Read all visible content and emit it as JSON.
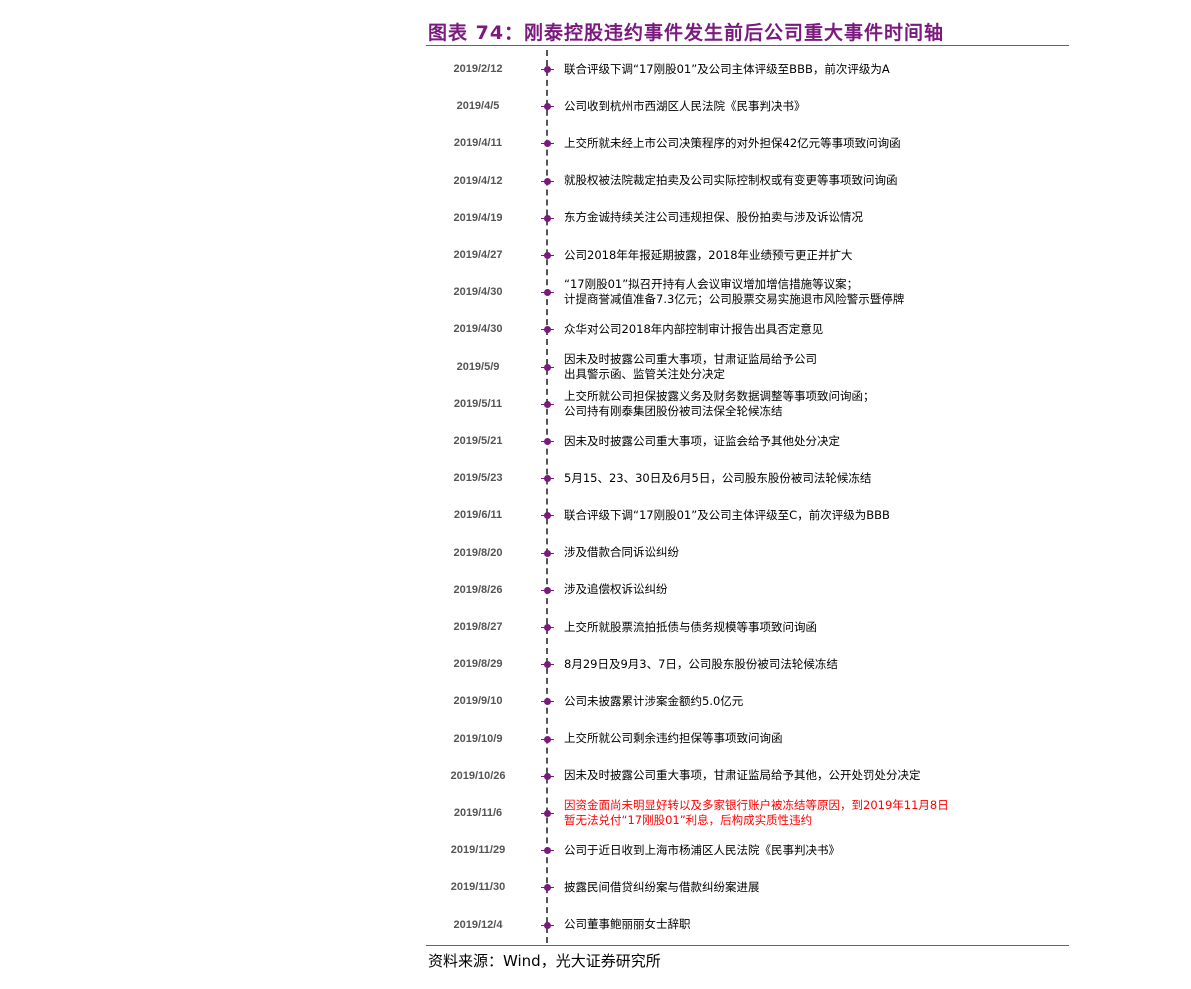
{
  "figure": {
    "title": "图表 74：刚泰控股违约事件发生前后公司重大事件时间轴",
    "source": "资料来源：Wind，光大证券研究所"
  },
  "events": [
    {
      "date": "2019/2/12",
      "lines": [
        "联合评级下调“17刚股01”及公司主体评级至BBB，前次评级为A"
      ],
      "highlight": false
    },
    {
      "date": "2019/4/5",
      "lines": [
        "公司收到杭州市西湖区人民法院《民事判决书》"
      ],
      "highlight": false
    },
    {
      "date": "2019/4/11",
      "lines": [
        "上交所就未经上市公司决策程序的对外担保42亿元等事项致问询函"
      ],
      "highlight": false
    },
    {
      "date": "2019/4/12",
      "lines": [
        "就股权被法院裁定拍卖及公司实际控制权或有变更等事项致问询函"
      ],
      "highlight": false
    },
    {
      "date": "2019/4/19",
      "lines": [
        "东方金诚持续关注公司违规担保、股份拍卖与涉及诉讼情况"
      ],
      "highlight": false
    },
    {
      "date": "2019/4/27",
      "lines": [
        "公司2018年年报延期披露，2018年业绩预亏更正并扩大"
      ],
      "highlight": false
    },
    {
      "date": "2019/4/30",
      "lines": [
        "“17刚股01”拟召开持有人会议审议增加增信措施等议案；",
        "计提商誉减值准备7.3亿元；公司股票交易实施退市风险警示暨停牌"
      ],
      "highlight": false
    },
    {
      "date": "2019/4/30",
      "lines": [
        "众华对公司2018年内部控制审计报告出具否定意见"
      ],
      "highlight": false
    },
    {
      "date": "2019/5/9",
      "lines": [
        "因未及时披露公司重大事项，甘肃证监局给予公司",
        "出具警示函、监管关注处分决定"
      ],
      "highlight": false
    },
    {
      "date": "2019/5/11",
      "lines": [
        "上交所就公司担保披露义务及财务数据调整等事项致问询函；",
        "公司持有刚泰集团股份被司法保全轮候冻结"
      ],
      "highlight": false
    },
    {
      "date": "2019/5/21",
      "lines": [
        "因未及时披露公司重大事项，证监会给予其他处分决定"
      ],
      "highlight": false
    },
    {
      "date": "2019/5/23",
      "lines": [
        "5月15、23、30日及6月5日，公司股东股份被司法轮候冻结"
      ],
      "highlight": false
    },
    {
      "date": "2019/6/11",
      "lines": [
        "联合评级下调“17刚股01”及公司主体评级至C，前次评级为BBB"
      ],
      "highlight": false
    },
    {
      "date": "2019/8/20",
      "lines": [
        "涉及借款合同诉讼纠纷"
      ],
      "highlight": false
    },
    {
      "date": "2019/8/26",
      "lines": [
        "涉及追偿权诉讼纠纷"
      ],
      "highlight": false
    },
    {
      "date": "2019/8/27",
      "lines": [
        "上交所就股票流拍抵债与债务规模等事项致问询函"
      ],
      "highlight": false
    },
    {
      "date": "2019/8/29",
      "lines": [
        "8月29日及9月3、7日，公司股东股份被司法轮候冻结"
      ],
      "highlight": false
    },
    {
      "date": "2019/9/10",
      "lines": [
        "公司未披露累计涉案金额约5.0亿元"
      ],
      "highlight": false
    },
    {
      "date": "2019/10/9",
      "lines": [
        "上交所就公司剩余违约担保等事项致问询函"
      ],
      "highlight": false
    },
    {
      "date": "2019/10/26",
      "lines": [
        "因未及时披露公司重大事项，甘肃证监局给予其他，公开处罚处分决定"
      ],
      "highlight": false
    },
    {
      "date": "2019/11/6",
      "lines": [
        "因资金面尚未明显好转以及多家银行账户被冻结等原因，到2019年11月8日",
        "暂无法兑付“17刚股01”利息，后构成实质性违约"
      ],
      "highlight": true
    },
    {
      "date": "2019/11/29",
      "lines": [
        "公司于近日收到上海市杨浦区人民法院《民事判决书》"
      ],
      "highlight": false
    },
    {
      "date": "2019/11/30",
      "lines": [
        "披露民间借贷纠纷案与借款纠纷案进展"
      ],
      "highlight": false
    },
    {
      "date": "2019/12/4",
      "lines": [
        "公司董事鲍丽丽女士辞职"
      ],
      "highlight": false
    }
  ],
  "colors": {
    "title": "#7a1a7e",
    "marker": "#7a1a7e",
    "highlight_text": "#ff0000"
  },
  "icons": {
    "marker": "timeline-dot-icon"
  }
}
